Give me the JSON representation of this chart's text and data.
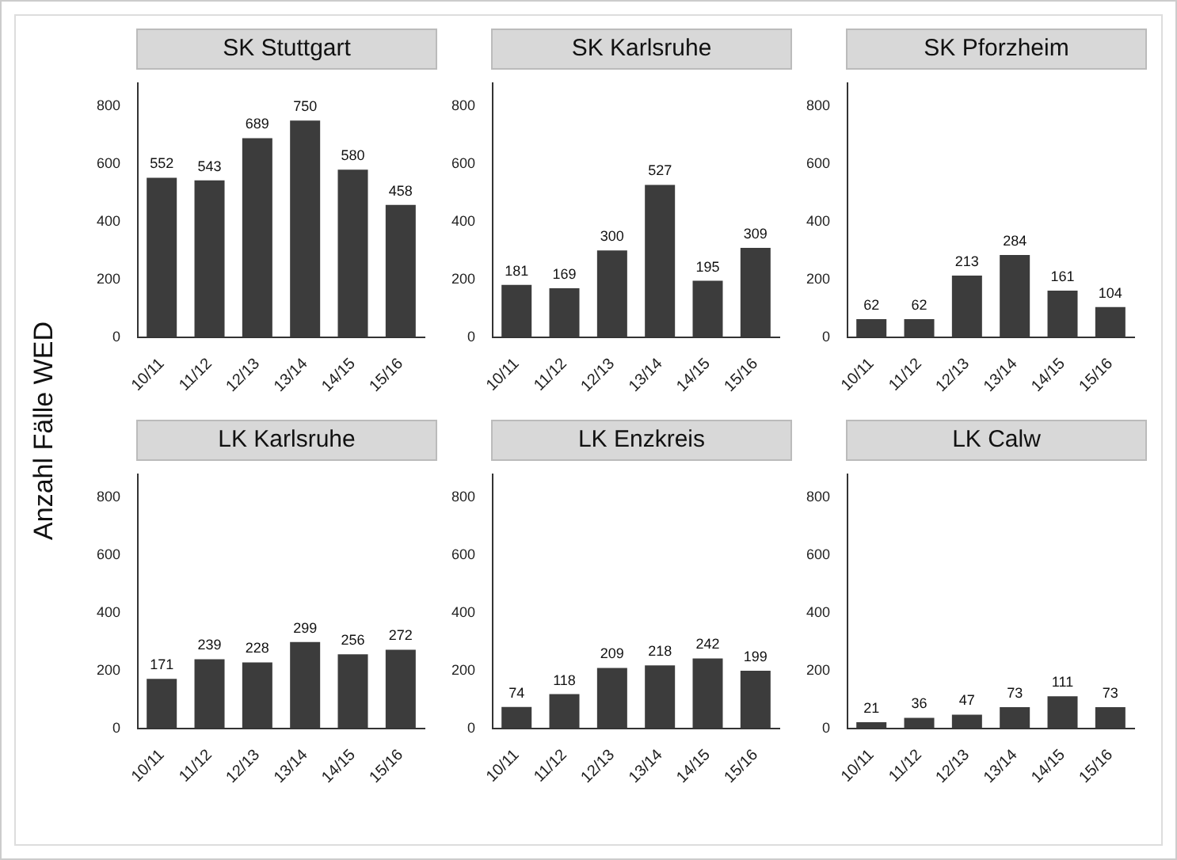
{
  "chart_data": [
    {
      "type": "bar",
      "title": "SK Stuttgart",
      "ylabel": "Anzahl Fälle WED",
      "categories": [
        "10/11",
        "11/12",
        "12/13",
        "13/14",
        "14/15",
        "15/16"
      ],
      "values": [
        552,
        543,
        689,
        750,
        580,
        458
      ],
      "color": "#3c3c3c",
      "ylim": [
        0,
        880
      ],
      "yticks": [
        0,
        200,
        400,
        600,
        800
      ],
      "data_labels": true
    },
    {
      "type": "bar",
      "title": "SK Karlsruhe",
      "categories": [
        "10/11",
        "11/12",
        "12/13",
        "13/14",
        "14/15",
        "15/16"
      ],
      "values": [
        181,
        169,
        300,
        527,
        195,
        309
      ],
      "color": "#3c3c3c",
      "ylim": [
        0,
        880
      ],
      "yticks": [
        0,
        200,
        400,
        600,
        800
      ],
      "data_labels": true
    },
    {
      "type": "bar",
      "title": "SK Pforzheim",
      "categories": [
        "10/11",
        "11/12",
        "12/13",
        "13/14",
        "14/15",
        "15/16"
      ],
      "values": [
        62,
        62,
        213,
        284,
        161,
        104
      ],
      "color": "#3c3c3c",
      "ylim": [
        0,
        880
      ],
      "yticks": [
        0,
        200,
        400,
        600,
        800
      ],
      "data_labels": true
    },
    {
      "type": "bar",
      "title": "LK Karlsruhe",
      "categories": [
        "10/11",
        "11/12",
        "12/13",
        "13/14",
        "14/15",
        "15/16"
      ],
      "values": [
        171,
        239,
        228,
        299,
        256,
        272
      ],
      "color": "#3c3c3c",
      "ylim": [
        0,
        880
      ],
      "yticks": [
        0,
        200,
        400,
        600,
        800
      ],
      "data_labels": true
    },
    {
      "type": "bar",
      "title": "LK Enzkreis",
      "categories": [
        "10/11",
        "11/12",
        "12/13",
        "13/14",
        "14/15",
        "15/16"
      ],
      "values": [
        74,
        118,
        209,
        218,
        242,
        199
      ],
      "color": "#3c3c3c",
      "ylim": [
        0,
        880
      ],
      "yticks": [
        0,
        200,
        400,
        600,
        800
      ],
      "data_labels": true
    },
    {
      "type": "bar",
      "title": "LK Calw",
      "categories": [
        "10/11",
        "11/12",
        "12/13",
        "13/14",
        "14/15",
        "15/16"
      ],
      "values": [
        21,
        36,
        47,
        73,
        111,
        73
      ],
      "color": "#3c3c3c",
      "ylim": [
        0,
        880
      ],
      "yticks": [
        0,
        200,
        400,
        600,
        800
      ],
      "data_labels": true
    }
  ]
}
